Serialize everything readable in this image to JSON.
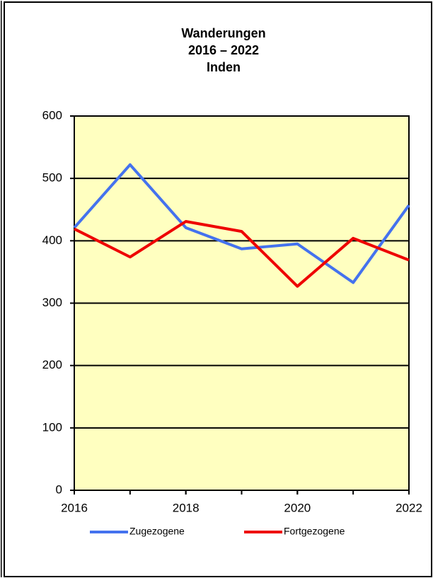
{
  "chart_data": {
    "type": "line",
    "title": [
      "Wanderungen",
      "2016 – 2022",
      "Inden"
    ],
    "x": [
      2016,
      2017,
      2018,
      2019,
      2020,
      2021,
      2022
    ],
    "series": [
      {
        "name": "Zugezogene",
        "color": "#4472ee",
        "values": [
          421,
          522,
          421,
          387,
          395,
          333,
          457
        ]
      },
      {
        "name": "Fortgezogene",
        "color": "#ee0000",
        "values": [
          419,
          374,
          431,
          415,
          327,
          404,
          369
        ]
      }
    ],
    "xlim": [
      2016,
      2022
    ],
    "xticks": [
      2016,
      2018,
      2020,
      2022
    ],
    "ylim": [
      0,
      600
    ],
    "yticks": [
      0,
      100,
      200,
      300,
      400,
      500,
      600
    ],
    "grid": true,
    "legend": "bottom"
  }
}
